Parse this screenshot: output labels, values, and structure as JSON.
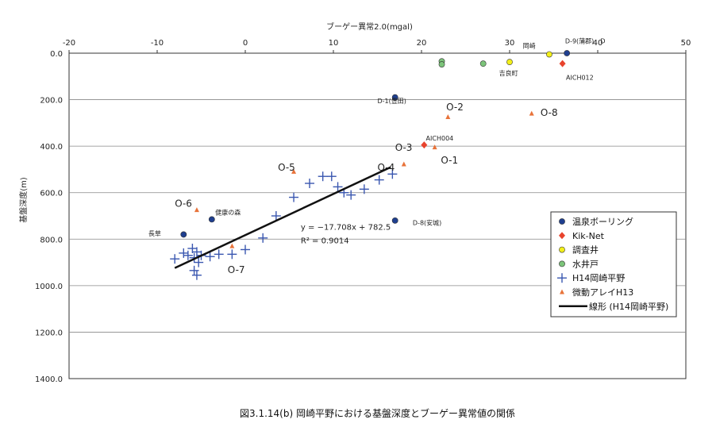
{
  "chart_data": {
    "type": "scatter",
    "title": "",
    "caption": "図3.1.14(b)  岡崎平野における基盤深度とブーゲー異常値の関係",
    "xlabel": "ブーゲー異常2.0(mgal)",
    "ylabel": "基盤深度(m)",
    "xlim": [
      -20,
      50
    ],
    "ylim": [
      1400,
      0
    ],
    "y_inverted": true,
    "x_axis_position": "top",
    "x_ticks": [
      -20,
      -10,
      0,
      10,
      20,
      30,
      40,
      50
    ],
    "x_tick_labels": [
      "-20",
      "-10",
      "0",
      "10",
      "20",
      "30",
      "40",
      "50"
    ],
    "y_ticks": [
      0,
      200,
      400,
      600,
      800,
      1000,
      1200,
      1400
    ],
    "y_tick_labels": [
      "0.0",
      "200.0",
      "400.0",
      "600.0",
      "800.0",
      "1000.0",
      "1200.0",
      "1400.0"
    ],
    "grid": "horizontal",
    "legend_position": "lower-right",
    "series": [
      {
        "name": "温泉ボーリング",
        "marker": "circle",
        "color": "#1f3f8f",
        "points": [
          [
            36.5,
            0
          ],
          [
            17,
            190
          ],
          [
            17,
            720
          ],
          [
            -3.8,
            715
          ],
          [
            -7,
            780
          ]
        ]
      },
      {
        "name": "Kik-Net",
        "marker": "diamond",
        "color": "#e8432d",
        "points": [
          [
            20.3,
            395
          ],
          [
            36,
            45
          ]
        ]
      },
      {
        "name": "調査井",
        "marker": "circle",
        "color": "#f2ef1a",
        "points": [
          [
            30,
            38
          ],
          [
            34.5,
            5
          ]
        ]
      },
      {
        "name": "水井戸",
        "marker": "circle",
        "color": "#7cc47a",
        "points": [
          [
            22.3,
            35
          ],
          [
            22.3,
            48
          ],
          [
            27,
            45
          ]
        ]
      },
      {
        "name": "H14岡崎平野",
        "marker": "plus",
        "color": "#3a57b0",
        "points": [
          [
            -8,
            885
          ],
          [
            -7,
            860
          ],
          [
            -6.5,
            870
          ],
          [
            -6,
            840
          ],
          [
            -5.8,
            880
          ],
          [
            -5.5,
            855
          ],
          [
            -5.3,
            900
          ],
          [
            -5.8,
            935
          ],
          [
            -5.5,
            955
          ],
          [
            -5,
            870
          ],
          [
            -4,
            875
          ],
          [
            -3,
            865
          ],
          [
            -1.5,
            865
          ],
          [
            0,
            845
          ],
          [
            2,
            795
          ],
          [
            3.5,
            700
          ],
          [
            5.5,
            620
          ],
          [
            7.3,
            560
          ],
          [
            8.8,
            530
          ],
          [
            9.8,
            530
          ],
          [
            10.5,
            575
          ],
          [
            11.2,
            600
          ],
          [
            12,
            610
          ],
          [
            13.5,
            585
          ],
          [
            15.2,
            545
          ],
          [
            16.7,
            520
          ]
        ]
      },
      {
        "name": "微動アレイH13",
        "marker": "triangle",
        "color": "#e8733a",
        "points": [
          [
            -5.5,
            675
          ],
          [
            -1.5,
            830
          ],
          [
            5.5,
            510
          ],
          [
            18,
            478
          ],
          [
            21.5,
            405
          ],
          [
            23,
            275
          ],
          [
            32.5,
            260
          ]
        ]
      },
      {
        "name": "線形 (H14岡崎平野)",
        "marker": "line",
        "color": "#111111",
        "points": [
          [
            -8,
            924.2
          ],
          [
            16.5,
            490.4
          ]
        ]
      }
    ],
    "annotations": [
      {
        "text": "岡崎",
        "x": 31.5,
        "y": -22,
        "size": "small"
      },
      {
        "text": "D-9(蒲郡)",
        "x": 36.3,
        "y": -42,
        "size": "small"
      },
      {
        "text": "D",
        "x": 40.3,
        "y": -42,
        "size": "small"
      },
      {
        "text": "吉良町",
        "x": 28.8,
        "y": 95,
        "size": "small"
      },
      {
        "text": "AICH012",
        "x": 36.4,
        "y": 115,
        "size": "small"
      },
      {
        "text": "D-1(豊田)",
        "x": 15,
        "y": 215,
        "size": "small"
      },
      {
        "text": "O-2",
        "x": 22.8,
        "y": 245,
        "size": "large"
      },
      {
        "text": "O-8",
        "x": 33.5,
        "y": 270,
        "size": "large"
      },
      {
        "text": "AICH004",
        "x": 20.5,
        "y": 375,
        "size": "small"
      },
      {
        "text": "O-3",
        "x": 17,
        "y": 420,
        "size": "large"
      },
      {
        "text": "O-1",
        "x": 22.2,
        "y": 475,
        "size": "large"
      },
      {
        "text": "O-4",
        "x": 15,
        "y": 505,
        "size": "large"
      },
      {
        "text": "O-5",
        "x": 3.7,
        "y": 505,
        "size": "large"
      },
      {
        "text": "O-6",
        "x": -8,
        "y": 660,
        "size": "large"
      },
      {
        "text": "健康の森",
        "x": -3.4,
        "y": 695,
        "size": "small"
      },
      {
        "text": "D-8(安城)",
        "x": 19,
        "y": 740,
        "size": "small"
      },
      {
        "text": "長草",
        "x": -11,
        "y": 785,
        "size": "small"
      },
      {
        "text": "O-7",
        "x": -2,
        "y": 945,
        "size": "large"
      }
    ],
    "trendline_equation": "y = −17.708x + 782.5",
    "r_squared": "R² = 0.9014"
  }
}
